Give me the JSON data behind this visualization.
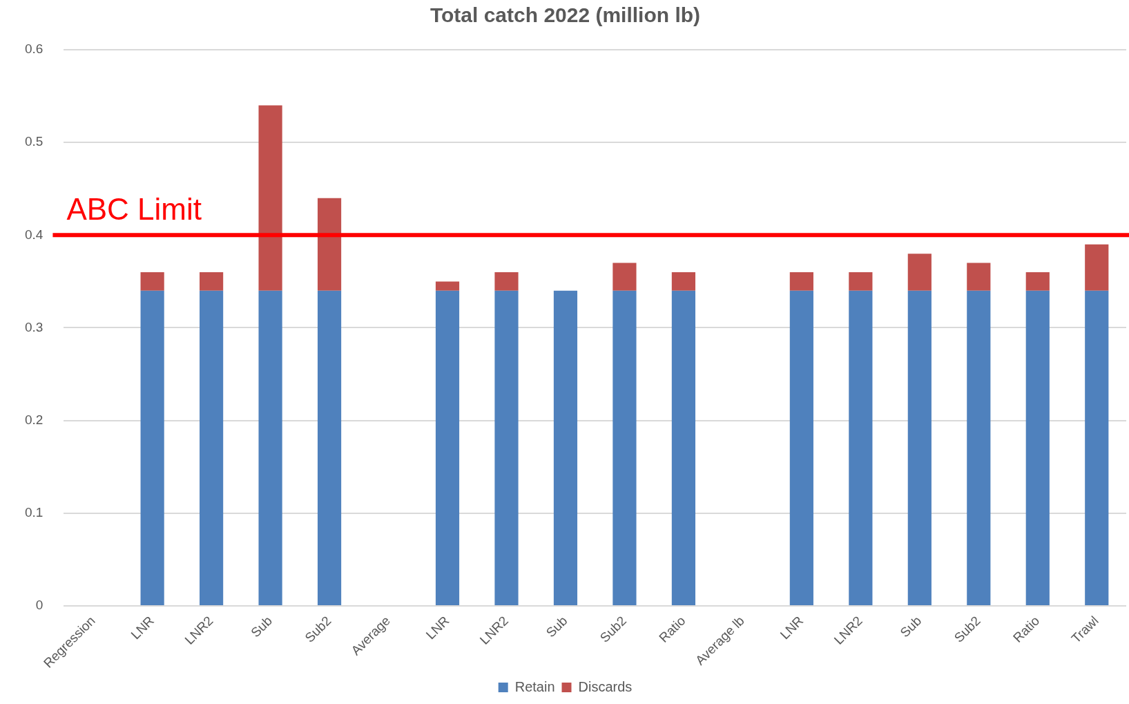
{
  "chart_data": {
    "type": "bar",
    "title": "Total catch 2022 (million lb)",
    "stacked": true,
    "categories": [
      "Regression",
      "LNR",
      "LNR2",
      "Sub",
      "Sub2",
      "Average",
      "LNR",
      "LNR2",
      "Sub",
      "Sub2",
      "Ratio",
      "Average lb",
      "LNR",
      "LNR2",
      "Sub",
      "Sub2",
      "Ratio",
      "Trawl"
    ],
    "series": [
      {
        "name": "Retain",
        "color": "#4f81bd",
        "values": [
          null,
          0.34,
          0.34,
          0.34,
          0.34,
          null,
          0.34,
          0.34,
          0.34,
          0.34,
          0.34,
          null,
          0.34,
          0.34,
          0.34,
          0.34,
          0.34,
          0.34
        ]
      },
      {
        "name": "Discards",
        "color": "#c0504d",
        "values": [
          null,
          0.02,
          0.02,
          0.2,
          0.1,
          null,
          0.01,
          0.02,
          0,
          0.03,
          0.02,
          null,
          0.02,
          0.02,
          0.04,
          0.03,
          0.02,
          0.05
        ]
      }
    ],
    "ylim": [
      0,
      0.6
    ],
    "yticks": [
      0,
      0.1,
      0.2,
      0.3,
      0.4,
      0.5,
      0.6
    ],
    "grid": "y",
    "legend": "bottom",
    "ref_lines": [
      {
        "axis": "y",
        "value": 0.4,
        "label": "ABC Limit",
        "color": "#ff0000"
      }
    ]
  }
}
